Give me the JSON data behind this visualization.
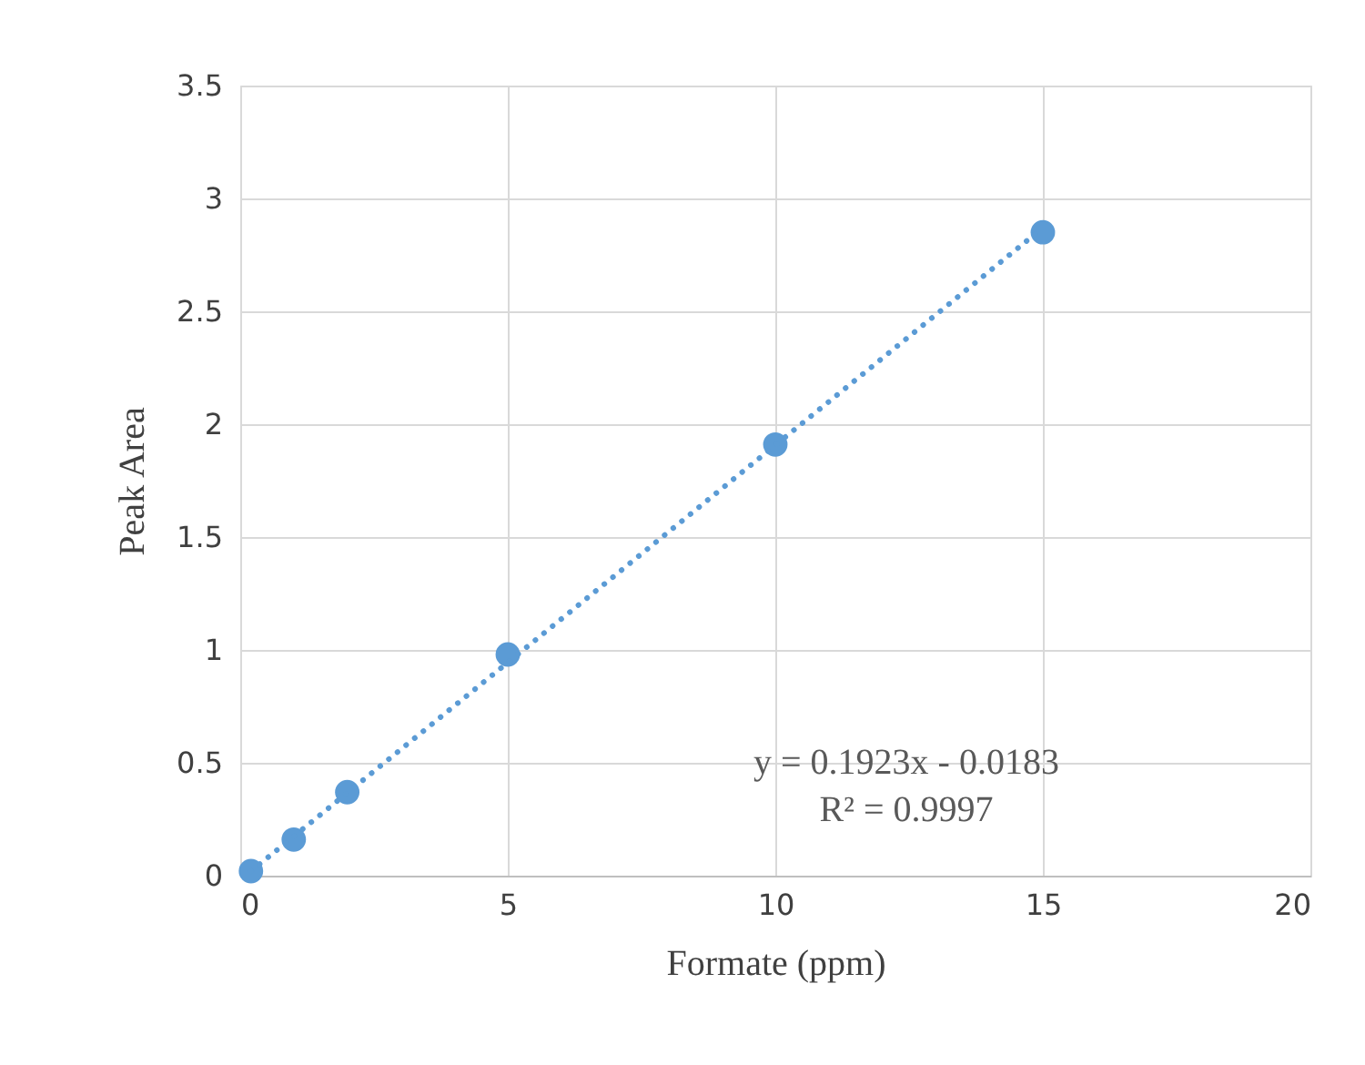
{
  "chart_data": {
    "type": "scatter",
    "xlabel": "Formate (ppm)",
    "ylabel": "Peak Area",
    "x": [
      0.2,
      1,
      2,
      5,
      10,
      15
    ],
    "series": [
      {
        "type": "scatter",
        "color": "#5b9bd5",
        "marker": "circle",
        "values": [
          0.02,
          0.16,
          0.37,
          0.98,
          1.91,
          2.85
        ]
      },
      {
        "type": "line",
        "color": "#5b9bd5",
        "line_style": "dotted",
        "x": [
          0.2,
          15
        ],
        "values": [
          0.02,
          2.87
        ]
      }
    ],
    "annotations": [
      "y = 0.1923x - 0.0183",
      "R² = 0.9997"
    ],
    "xlim": [
      0,
      20
    ],
    "xticks": [
      0,
      5,
      10,
      15,
      20
    ],
    "ylim": [
      0,
      3.5
    ],
    "yticks": [
      0,
      0.5,
      1,
      1.5,
      2,
      2.5,
      3,
      3.5
    ],
    "grid": true
  }
}
